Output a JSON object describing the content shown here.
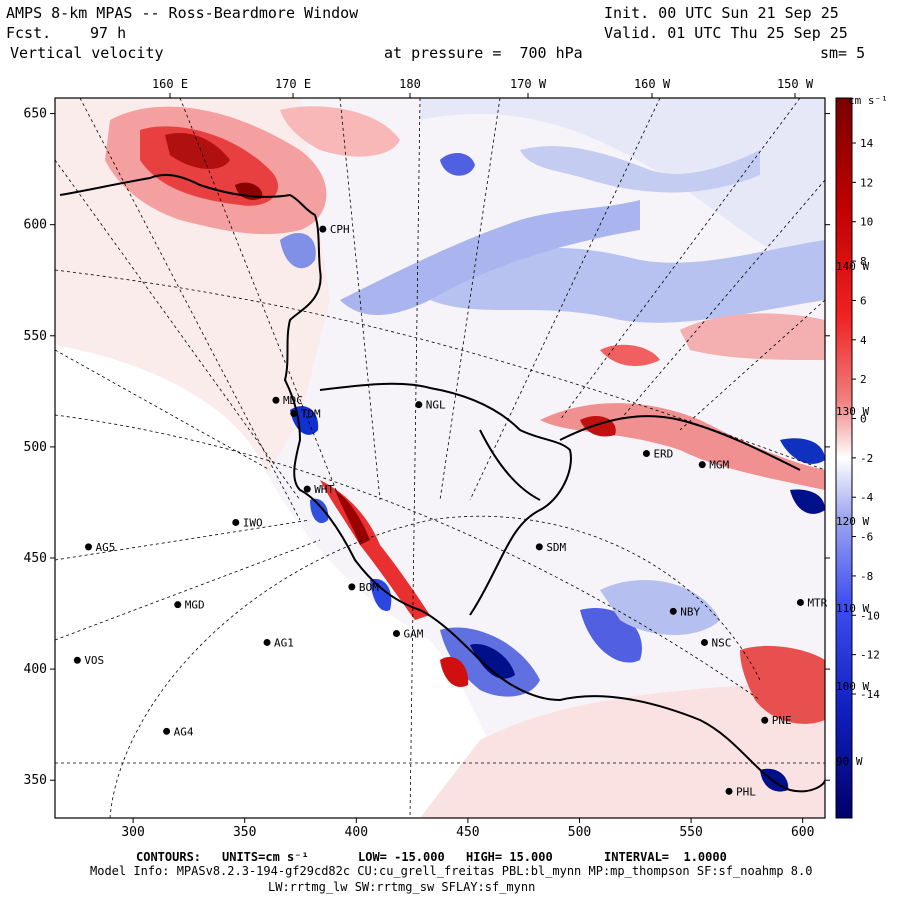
{
  "header": {
    "title": "AMPS 8-km MPAS -- Ross-Beardmore Window",
    "fcst_label": "Fcst.",
    "fcst_value": "97 h",
    "field": "Vertical velocity",
    "init": "Init. 00 UTC Sun 21 Sep 25",
    "valid": "Valid. 01 UTC Thu 25 Sep 25",
    "pressure": "at pressure =  700 hPa",
    "smoothing": "sm= 5"
  },
  "top_lon_labels": [
    "160 E",
    "170 E",
    "180",
    "170 W",
    "160 W",
    "150 W"
  ],
  "right_lon_labels": [
    "140 W",
    "130 W",
    "120 W",
    "110 W",
    "100 W",
    "90 W"
  ],
  "y_ticks": [
    650,
    600,
    550,
    500,
    450,
    400,
    350
  ],
  "x_ticks": [
    300,
    350,
    400,
    450,
    500,
    550,
    600
  ],
  "stations": [
    {
      "name": "MDC",
      "x": 364,
      "y": 521
    },
    {
      "name": "TDM",
      "x": 372,
      "y": 515
    },
    {
      "name": "NGL",
      "x": 428,
      "y": 519
    },
    {
      "name": "ERD",
      "x": 530,
      "y": 497
    },
    {
      "name": "MGM",
      "x": 555,
      "y": 492
    },
    {
      "name": "WHT",
      "x": 378,
      "y": 481
    },
    {
      "name": "IWO",
      "x": 346,
      "y": 466
    },
    {
      "name": "AG5",
      "x": 280,
      "y": 455
    },
    {
      "name": "SDM",
      "x": 482,
      "y": 455
    },
    {
      "name": "BOM",
      "x": 398,
      "y": 437
    },
    {
      "name": "MGD",
      "x": 320,
      "y": 429
    },
    {
      "name": "NBY",
      "x": 542,
      "y": 426
    },
    {
      "name": "MTR",
      "x": 599,
      "y": 430
    },
    {
      "name": "GAM",
      "x": 418,
      "y": 416
    },
    {
      "name": "AG1",
      "x": 360,
      "y": 412
    },
    {
      "name": "NSC",
      "x": 556,
      "y": 412
    },
    {
      "name": "VOS",
      "x": 275,
      "y": 404
    },
    {
      "name": "AG4",
      "x": 315,
      "y": 372
    },
    {
      "name": "PNE",
      "x": 583,
      "y": 377
    },
    {
      "name": "PHL",
      "x": 567,
      "y": 345
    },
    {
      "name": "CPH",
      "x": 385,
      "y": 598
    }
  ],
  "colorbar": {
    "unit": "cm s⁻¹",
    "ticks": [
      "14",
      "12",
      "10",
      "8",
      "6",
      "4",
      "2",
      "0",
      "-2",
      "-4",
      "-6",
      "-8",
      "-10",
      "-12",
      "-14"
    ]
  },
  "footer": {
    "contours_label": "CONTOURS:",
    "units": "UNITS=cm s⁻¹",
    "low": "LOW= -15.000",
    "high": "HIGH= 15.000",
    "interval": "INTERVAL=  1.0000",
    "model_info": "Model Info: MPASv8.2.3-194-gf29cd82c CU:cu_grell_freitas PBL:bl_mynn MP:mp_thompson SF:sf_noahmp 8.0",
    "model_info2": "LW:rrtmg_lw SW:rrtmg_sw SFLAY:sf_mynn"
  },
  "colors": {
    "red_dark": "#8b0000",
    "red": "#e01010",
    "pink": "#f8c8c8",
    "white": "#ffffff",
    "lightblue": "#c8d0f4",
    "blue": "#2040e0",
    "navy": "#000080"
  }
}
